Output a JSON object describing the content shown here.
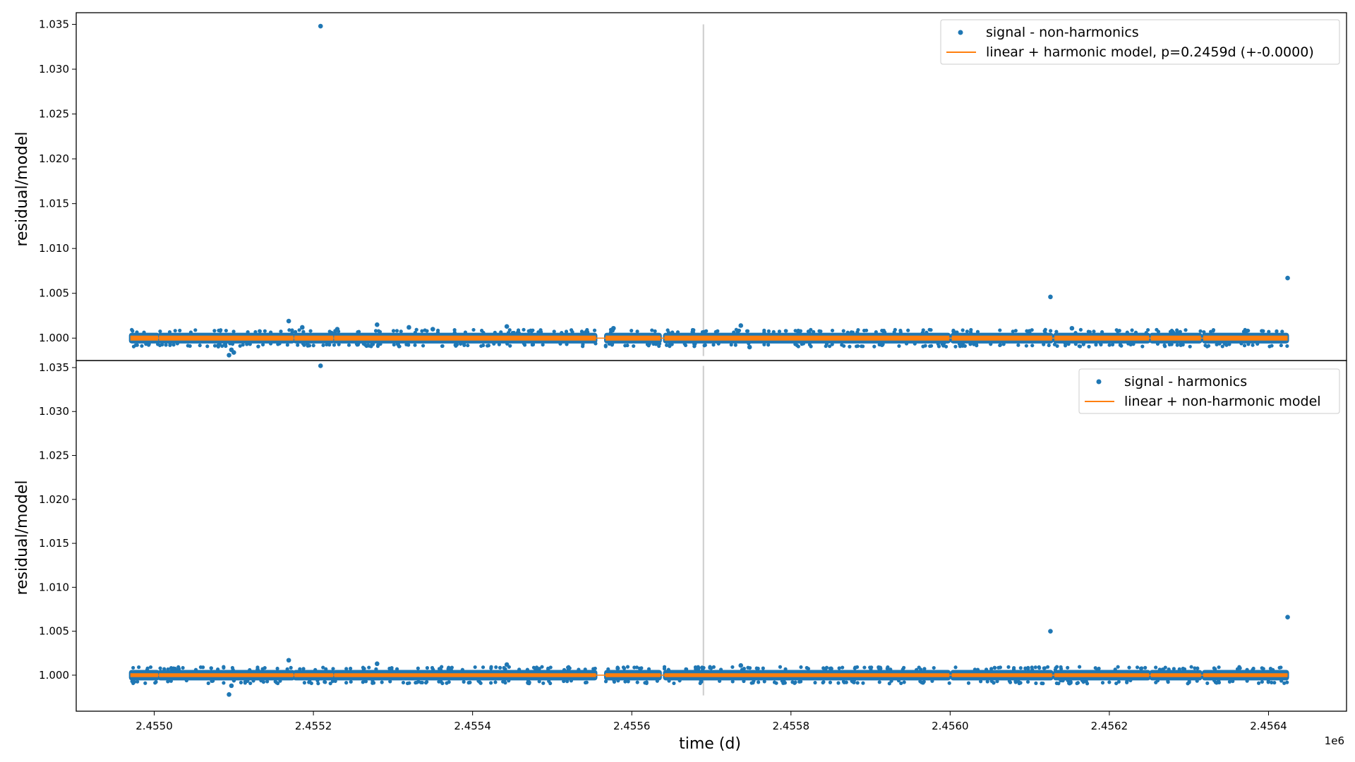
{
  "chart_data": [
    {
      "type": "scatter",
      "panel": "top",
      "xlabel": "",
      "ylabel": "residual/model",
      "ylim": [
        0.9975,
        1.0363
      ],
      "xlim": [
        2454902,
        2456498
      ],
      "yticks": [
        1.0,
        1.005,
        1.01,
        1.015,
        1.02,
        1.025,
        1.03,
        1.035
      ],
      "ytick_labels": [
        "1.000",
        "1.005",
        "1.010",
        "1.015",
        "1.020",
        "1.025",
        "1.030",
        "1.035"
      ],
      "vline": {
        "x": 2455690,
        "ymin": 0.998,
        "ymax": 1.035,
        "color": "#cccccc"
      },
      "band": {
        "color": "#1f77b4",
        "y_center": 1.0,
        "half_width": 0.0006
      },
      "segments": [
        [
          2454970,
          2455005
        ],
        [
          2455006,
          2455175
        ],
        [
          2455176,
          2455225
        ],
        [
          2455226,
          2455555
        ],
        [
          2455567,
          2455636
        ],
        [
          2455641,
          2455999
        ],
        [
          2456002,
          2456128
        ],
        [
          2456131,
          2456250
        ],
        [
          2456252,
          2456315
        ],
        [
          2456318,
          2456424
        ]
      ],
      "series": [
        {
          "name": "signal - non-harmonics",
          "kind": "points",
          "color": "#1f77b4",
          "outliers": [
            [
              2455209,
              1.0348
            ],
            [
              2456126,
              1.0046
            ],
            [
              2456424,
              1.0067
            ],
            [
              2455169,
              1.0019
            ],
            [
              2455186,
              1.0012
            ],
            [
              2455280,
              1.0015
            ],
            [
              2455443,
              1.0013
            ],
            [
              2455094,
              0.9981
            ],
            [
              2455097,
              0.9987
            ],
            [
              2455100,
              0.9984
            ],
            [
              2455577,
              1.0011
            ],
            [
              2455737,
              1.0014
            ],
            [
              2455748,
              0.999
            ],
            [
              2456153,
              1.0011
            ],
            [
              2455320,
              1.0012
            ],
            [
              2455350,
              1.001
            ],
            [
              2455230,
              1.001
            ]
          ]
        },
        {
          "name": "linear + harmonic model, p=0.2459d (+-0.0000)",
          "kind": "line",
          "color": "#ff7f0e",
          "y": 1.0,
          "half_width": 0.00028
        }
      ],
      "legend": {
        "loc": "top-right",
        "entries": [
          "signal - non-harmonics",
          "linear + harmonic model, p=0.2459d (+-0.0000)"
        ]
      }
    },
    {
      "type": "scatter",
      "panel": "bottom",
      "xlabel": "time (d)",
      "ylabel": "residual/model",
      "ylim": [
        0.9959,
        1.0358
      ],
      "xlim": [
        2454902,
        2456498
      ],
      "xticks": [
        2455000,
        2455200,
        2455400,
        2455600,
        2455800,
        2456000,
        2456200,
        2456400
      ],
      "xtick_labels": [
        "2.4550",
        "2.4552",
        "2.4554",
        "2.4556",
        "2.4558",
        "2.4560",
        "2.4562",
        "2.4564"
      ],
      "x_offset_label": "1e6",
      "yticks": [
        1.0,
        1.005,
        1.01,
        1.015,
        1.02,
        1.025,
        1.03,
        1.035
      ],
      "ytick_labels": [
        "1.000",
        "1.005",
        "1.010",
        "1.015",
        "1.020",
        "1.025",
        "1.030",
        "1.035"
      ],
      "vline": {
        "x": 2455690,
        "ymin": 0.9977,
        "ymax": 1.0352,
        "color": "#cccccc"
      },
      "band": {
        "color": "#1f77b4",
        "y_center": 1.0,
        "half_width": 0.0006
      },
      "segments": [
        [
          2454970,
          2455005
        ],
        [
          2455006,
          2455175
        ],
        [
          2455176,
          2455225
        ],
        [
          2455226,
          2455555
        ],
        [
          2455567,
          2455636
        ],
        [
          2455641,
          2455999
        ],
        [
          2456002,
          2456128
        ],
        [
          2456131,
          2456250
        ],
        [
          2456252,
          2456315
        ],
        [
          2456318,
          2456424
        ]
      ],
      "series": [
        {
          "name": "signal - harmonics",
          "kind": "points",
          "color": "#1f77b4",
          "outliers": [
            [
              2455209,
              1.0352
            ],
            [
              2456126,
              1.005
            ],
            [
              2456424,
              1.0066
            ],
            [
              2455169,
              1.0017
            ],
            [
              2455280,
              1.0013
            ],
            [
              2455094,
              0.9978
            ],
            [
              2455097,
              0.9988
            ],
            [
              2455443,
              1.0012
            ],
            [
              2455737,
              1.0011
            ],
            [
              2456150,
              0.9991
            ]
          ]
        },
        {
          "name": "linear + non-harmonic model",
          "kind": "line",
          "color": "#ff7f0e",
          "y": 1.0,
          "half_width": 0.00022
        }
      ],
      "legend": {
        "loc": "top-right",
        "entries": [
          "signal - harmonics",
          "linear + non-harmonic model"
        ]
      }
    }
  ]
}
